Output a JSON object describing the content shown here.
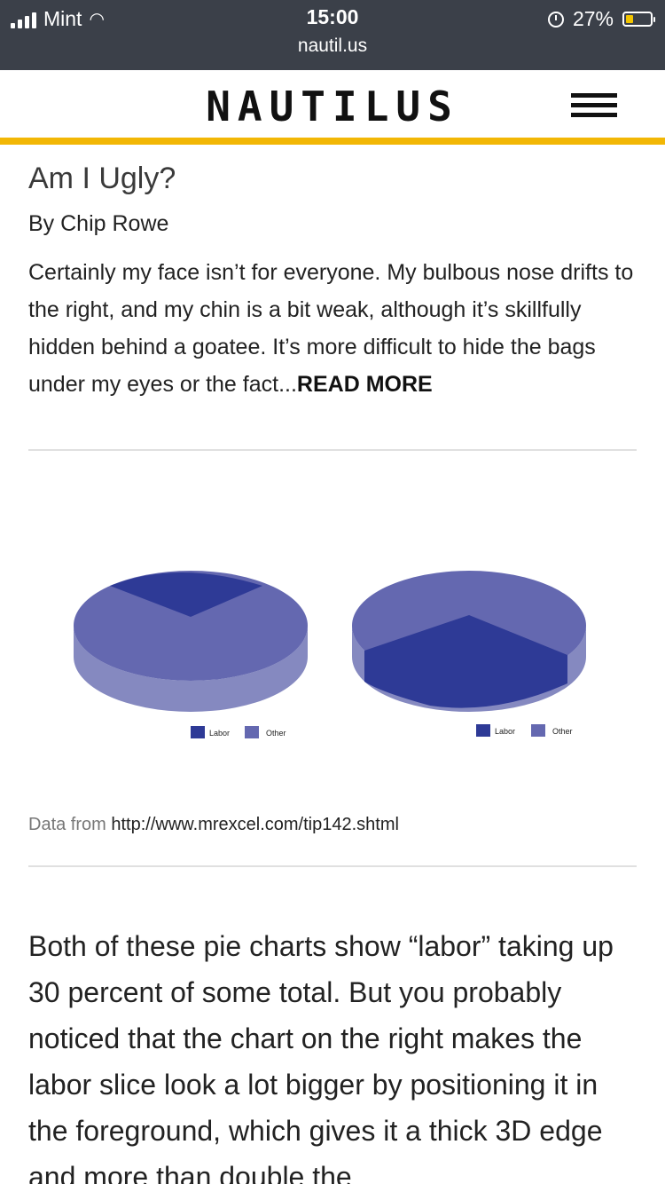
{
  "status": {
    "carrier": "Mint",
    "time": "15:00",
    "url": "nautil.us",
    "battery": "27%"
  },
  "header": {
    "logo": "NAUTILUS",
    "menu_icon": "hamburger-menu-icon"
  },
  "article": {
    "title": "Am I Ugly?",
    "byline": "By Chip Rowe",
    "excerpt": "Certainly my face isn’t for everyone. My bulbous nose drifts to the right, and my chin is a bit weak, although it’s skillfully hidden behind a goatee. It’s more difficult to hide the bags under my eyes or the fact...",
    "read_more": "READ MORE"
  },
  "figure": {
    "source_label": "Data from",
    "source_link": "http://www.mrexcel.com/tip142.shtml"
  },
  "body": {
    "paragraph": "Both of these pie charts show “labor” taking up 30 percent of some total. But you probably noticed that the chart on the right makes the labor slice look a lot bigger by positioning it in the foreground, which gives it a thick 3D edge and more than double the"
  },
  "chart_data": [
    {
      "type": "pie",
      "title": "",
      "categories": [
        "Labor",
        "Other"
      ],
      "values": [
        30,
        70
      ],
      "colors": [
        "#2e3a96",
        "#6468b0"
      ],
      "legend": "bottom",
      "style": "3d",
      "labor_position": "back"
    },
    {
      "type": "pie",
      "title": "",
      "categories": [
        "Labor",
        "Other"
      ],
      "values": [
        30,
        70
      ],
      "colors": [
        "#2e3a96",
        "#6468b0"
      ],
      "legend": "bottom",
      "style": "3d",
      "labor_position": "front"
    }
  ]
}
